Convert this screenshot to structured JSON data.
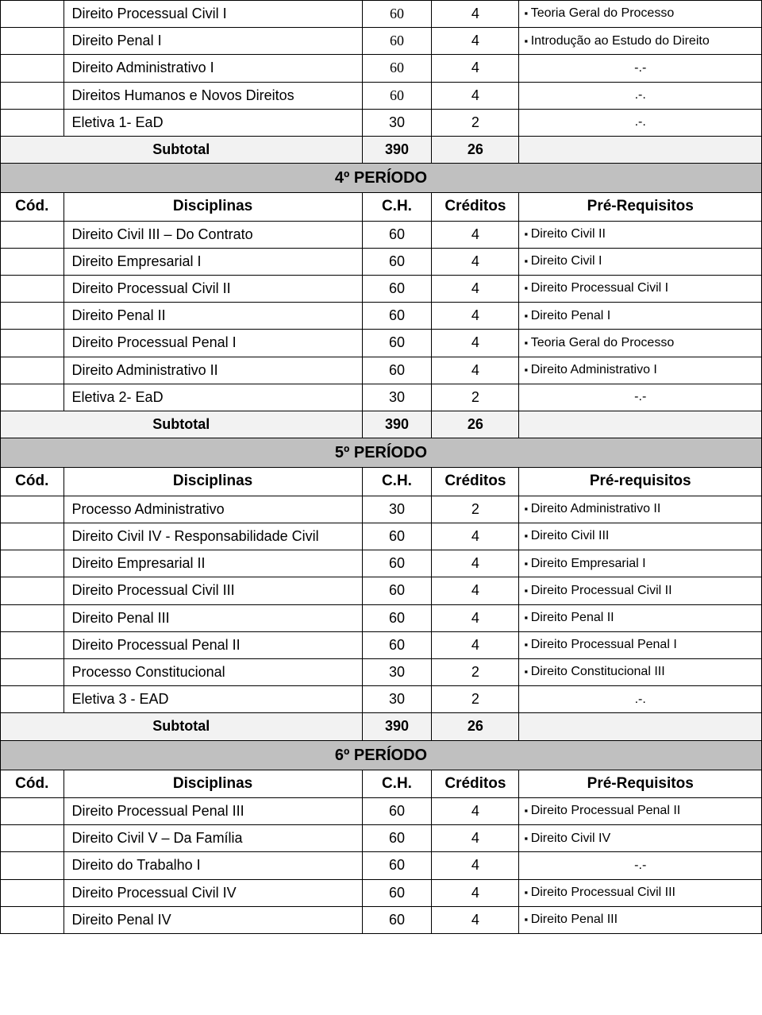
{
  "top_rows": [
    {
      "disc": "Direito Processual Civil I",
      "ch": "60",
      "cred": "4",
      "pre": "Teoria Geral do Processo",
      "bullet": true,
      "serif": true
    },
    {
      "disc": "Direito Penal I",
      "ch": "60",
      "cred": "4",
      "pre": "Introdução ao Estudo do Direito",
      "bullet": true,
      "serif": true
    },
    {
      "disc": "Direito Administrativo I",
      "ch": "60",
      "cred": "4",
      "pre": "-.-",
      "bullet": false,
      "serif": true
    },
    {
      "disc": "Direitos Humanos e Novos Direitos",
      "ch": "60",
      "cred": "4",
      "pre": ".-.",
      "bullet": false,
      "serif": true
    },
    {
      "disc": "Eletiva 1- EaD",
      "ch": "30",
      "cred": "2",
      "pre": ".-.",
      "bullet": false,
      "serif": false
    }
  ],
  "top_subtotal": {
    "label": "Subtotal",
    "ch": "390",
    "cred": "26"
  },
  "periods": [
    {
      "title": "4º PERÍODO",
      "headers": {
        "cod": "Cód.",
        "disc": "Disciplinas",
        "ch": "C.H.",
        "cred": "Créditos",
        "pre": "Pré-Requisitos"
      },
      "rows": [
        {
          "disc": "Direito Civil III – Do Contrato",
          "ch": "60",
          "cred": "4",
          "pre": "Direito Civil II",
          "bullet": true
        },
        {
          "disc": " Direito Empresarial I",
          "ch": "60",
          "cred": "4",
          "pre": "Direito Civil I",
          "bullet": true
        },
        {
          "disc": "Direito Processual Civil II",
          "ch": "60",
          "cred": "4",
          "pre": "Direito Processual Civil I",
          "bullet": true
        },
        {
          "disc": "Direito Penal II",
          "ch": "60",
          "cred": "4",
          "pre": "Direito Penal I",
          "bullet": true
        },
        {
          "disc": "Direito Processual Penal I",
          "ch": "60",
          "cred": "4",
          "pre": "Teoria Geral do Processo",
          "bullet": true
        },
        {
          "disc": "Direito Administrativo II",
          "ch": "60",
          "cred": "4",
          "pre": "Direito Administrativo I",
          "bullet": true
        },
        {
          "disc": "Eletiva 2- EaD",
          "ch": "30",
          "cred": "2",
          "pre": "-.-",
          "bullet": false
        }
      ],
      "subtotal": {
        "label": "Subtotal",
        "ch": "390",
        "cred": "26"
      }
    },
    {
      "title": "5º PERÍODO",
      "headers": {
        "cod": "Cód.",
        "disc": "Disciplinas",
        "ch": "C.H.",
        "cred": "Créditos",
        "pre": "Pré-requisitos"
      },
      "rows": [
        {
          "disc": "Processo Administrativo",
          "ch": "30",
          "cred": "2",
          "pre": "Direito Administrativo II",
          "bullet": true
        },
        {
          "disc": "Direito Civil IV - Responsabilidade Civil",
          "ch": "60",
          "cred": "4",
          "pre": "Direito Civil III",
          "bullet": true
        },
        {
          "disc": "Direito Empresarial II",
          "ch": "60",
          "cred": "4",
          "pre": "Direito Empresarial I",
          "bullet": true
        },
        {
          "disc": "Direito Processual Civil III",
          "ch": "60",
          "cred": "4",
          "pre": "Direito Processual Civil II",
          "bullet": true
        },
        {
          "disc": "Direito Penal III",
          "ch": "60",
          "cred": "4",
          "pre": "Direito Penal II",
          "bullet": true
        },
        {
          "disc": "Direito Processual Penal II",
          "ch": "60",
          "cred": "4",
          "pre": "Direito Processual Penal I",
          "bullet": true
        },
        {
          "disc": "Processo Constitucional",
          "ch": "30",
          "cred": "2",
          "pre": "Direito Constitucional III",
          "bullet": true
        },
        {
          "disc": "Eletiva 3 - EAD",
          "ch": "30",
          "cred": "2",
          "pre": ".-.",
          "bullet": false
        }
      ],
      "subtotal": {
        "label": "Subtotal",
        "ch": "390",
        "cred": "26"
      }
    },
    {
      "title": "6º PERÍODO",
      "headers": {
        "cod": "Cód.",
        "disc": "Disciplinas",
        "ch": "C.H.",
        "cred": "Créditos",
        "pre": "Pré-Requisitos"
      },
      "rows": [
        {
          "disc": "Direito Processual Penal III",
          "ch": "60",
          "cred": "4",
          "pre": "Direito Processual Penal II",
          "bullet": true
        },
        {
          "disc": "Direito Civil V – Da Família",
          "ch": "60",
          "cred": "4",
          "pre": "Direito Civil IV",
          "bullet": true
        },
        {
          "disc": "Direito do Trabalho I",
          "ch": "60",
          "cred": "4",
          "pre": "-.-",
          "bullet": false
        },
        {
          "disc": "Direito Processual Civil IV",
          "ch": "60",
          "cred": "4",
          "pre": "Direito Processual Civil III",
          "bullet": true
        },
        {
          "disc": "Direito Penal IV",
          "ch": "60",
          "cred": "4",
          "pre": "Direito Penal III",
          "bullet": true
        }
      ],
      "subtotal": null
    }
  ]
}
